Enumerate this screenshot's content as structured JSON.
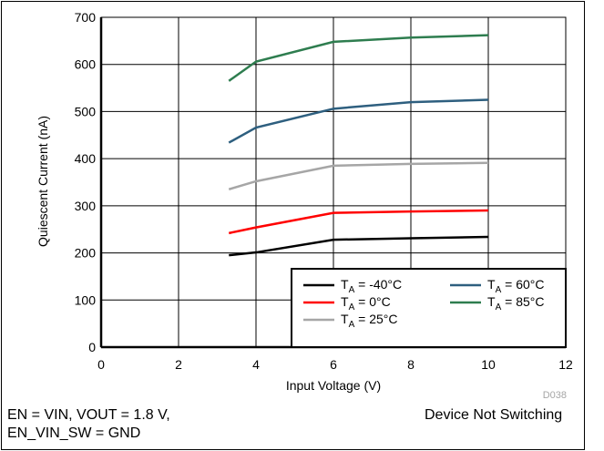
{
  "chart_data": {
    "type": "line",
    "xlabel": "Input Voltage (V)",
    "ylabel": "Quiescent Current (nA)",
    "xlim": [
      0,
      12
    ],
    "ylim": [
      0,
      700
    ],
    "xticks": [
      0,
      2,
      4,
      6,
      8,
      10,
      12
    ],
    "yticks": [
      0,
      100,
      200,
      300,
      400,
      500,
      600,
      700
    ],
    "grid": true,
    "legend_position": "bottom-right",
    "x": [
      3.3,
      4,
      6,
      8,
      10
    ],
    "series": [
      {
        "name_main": "T",
        "name_sub": "A",
        "name_rest": " = -40°C",
        "color": "#000000",
        "values": [
          195,
          201,
          228,
          231,
          234
        ]
      },
      {
        "name_main": "T",
        "name_sub": "A",
        "name_rest": " = 0°C",
        "color": "#ff0000",
        "values": [
          242,
          254,
          285,
          288,
          290
        ]
      },
      {
        "name_main": "T",
        "name_sub": "A",
        "name_rest": " = 25°C",
        "color": "#a6a6a6",
        "values": [
          335,
          352,
          385,
          389,
          391
        ]
      },
      {
        "name_main": "T",
        "name_sub": "A",
        "name_rest": " = 60°C",
        "color": "#2e5f7f",
        "values": [
          434,
          466,
          506,
          520,
          525
        ]
      },
      {
        "name_main": "T",
        "name_sub": "A",
        "name_rest": " = 85°C",
        "color": "#2e7d4f",
        "values": [
          565,
          606,
          648,
          657,
          662
        ]
      }
    ],
    "code": "D038"
  },
  "notes": {
    "left_line1": "EN = VIN, VOUT = 1.8 V,",
    "left_line2": "EN_VIN_SW = GND",
    "right": "Device Not Switching"
  }
}
